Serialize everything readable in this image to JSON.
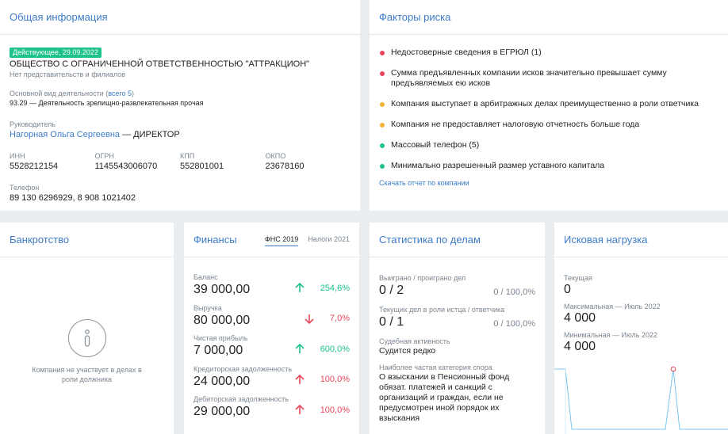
{
  "general": {
    "title": "Общая информация",
    "status_badge": "Действующее, 29.09.2022",
    "company_name": "ОБЩЕСТВО С ОГРАНИЧЕННОЙ ОТВЕТСТВЕННОСТЬЮ \"АТТРАКЦИОН\"",
    "branches_note": "Нет представительств и филиалов",
    "activity_label": "Основной вид деятельности (",
    "activity_link": "всего 5",
    "activity_label_end": ")",
    "activity_value": "93.29 — Деятельность зрелищно-развлекательная прочая",
    "head_label": "Руководитель",
    "head_name": "Нагорная Ольга Сергеевна",
    "head_role": " — ДИРЕКТОР",
    "ids": [
      {
        "label": "ИНН",
        "value": "5528212154"
      },
      {
        "label": "ОГРН",
        "value": "1145543006070"
      },
      {
        "label": "КПП",
        "value": "552801001"
      },
      {
        "label": "ОКПО",
        "value": "23678160"
      }
    ],
    "phone_label": "Телефон",
    "phone_value": "89 130 6296929, 8 908 1021402"
  },
  "risk": {
    "title": "Факторы риска",
    "items": [
      {
        "text": "Недостоверные сведения в ЕГРЮЛ (1)",
        "color": "#e8475a"
      },
      {
        "text": "Сумма предъявленных компании исков значительно превышает сумму предъявляемых ею исков",
        "color": "#e8475a"
      },
      {
        "text": "Компания выступает в арбитражных делах преимущественно в роли ответчика",
        "color": "#f2b233"
      },
      {
        "text": "Компания не предоставляет налоговую отчетность больше года",
        "color": "#f2b233"
      },
      {
        "text": "Массовый телефон (5)",
        "color": "#1ec28b"
      },
      {
        "text": "Минимально разрешенный размер уставного капитала",
        "color": "#1ec28b"
      }
    ],
    "report_link": "Скачать отчет по компании"
  },
  "bankruptcy": {
    "title": "Банкротство",
    "text": "Компания не участвует в делах в роли должника"
  },
  "finance": {
    "title": "Финансы",
    "tabs": [
      "ФНС 2019",
      "Налоги 2021"
    ],
    "rows": [
      {
        "label": "Баланс",
        "value": "39 000,00",
        "change": "254,6%",
        "dir": "up"
      },
      {
        "label": "Выручка",
        "value": "80 000,00",
        "change": "7,0%",
        "dir": "down"
      },
      {
        "label": "Чистая прибыль",
        "value": "7 000,00",
        "change": "600,0%",
        "dir": "up"
      },
      {
        "label": "Кредиторская задолженность",
        "value": "24 000,00",
        "change": "100,0%",
        "dir": "up-red"
      },
      {
        "label": "Дебиторская задолженность",
        "value": "29 000,00",
        "change": "100,0%",
        "dir": "up-red"
      }
    ]
  },
  "stats": {
    "title": "Статистика по делам",
    "won_label": "Выиграно / проиграно дел",
    "won_value": "0 / 2",
    "won_pct": "0 / 100,0%",
    "plaintiff_label": "Текущих дел в роли истца / ответчика",
    "plaintiff_value": "0 / 1",
    "plaintiff_pct": "0 / 100,0%",
    "activity_label": "Судебная активность",
    "activity_value": "Судится редко",
    "category_label": "Наиболее частая категория спора",
    "category_value": "О взыскании в Пенсионный фонд обязат. платежей и санкций с организаций и граждан, если не предусмотрен иной порядок их взыскания"
  },
  "claims": {
    "title": "Исковая нагрузка",
    "current_label": "Текущая",
    "current_value": "0",
    "max_label": "Максимальная — Июль 2022",
    "max_value": "4 000",
    "min_label": "Минимальная — Июль 2022",
    "min_value": "4 000",
    "line_color": "#7cc4ee",
    "marker_color": "#e8475a"
  }
}
